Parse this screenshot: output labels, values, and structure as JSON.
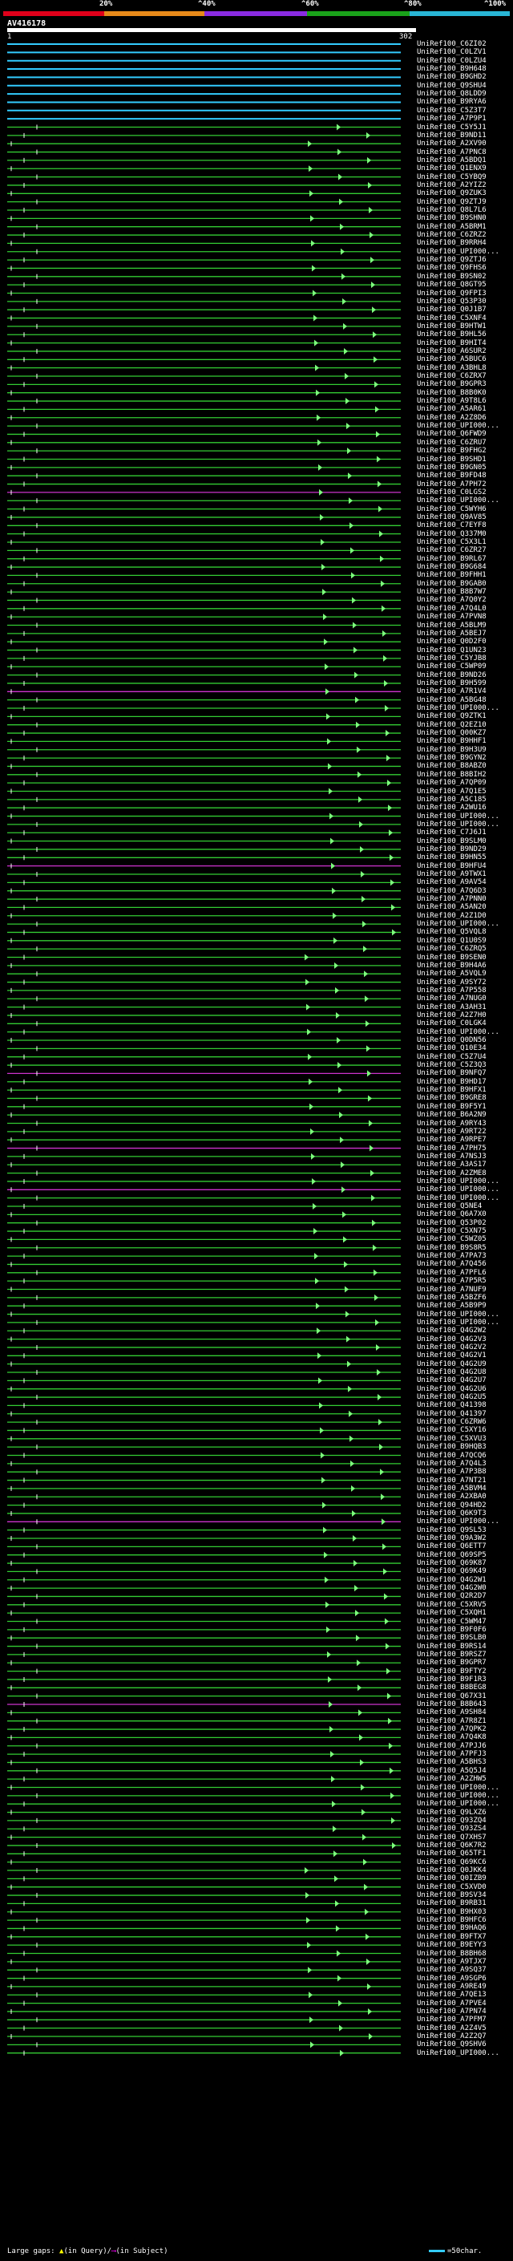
{
  "scale": {
    "ticks": [
      "20%",
      "^40%",
      "^60%",
      "^80%",
      "^100%"
    ],
    "colors": [
      "#e0001a",
      "#e88a1a",
      "#8a2be2",
      "#1aa31a",
      "#29b6d6"
    ]
  },
  "query": {
    "title": "AV416178",
    "start": "1",
    "end": "302"
  },
  "chart_data": {
    "type": "table",
    "title": "AV416178",
    "query_length": 302,
    "hits": [
      {
        "id": "UniRef100_C6ZI02",
        "color": "blue"
      },
      {
        "id": "UniRef100_C0LZV1",
        "color": "blue"
      },
      {
        "id": "UniRef100_C0LZU4",
        "color": "blue"
      },
      {
        "id": "UniRef100_B9H648",
        "color": "blue"
      },
      {
        "id": "UniRef100_B9GHD2",
        "color": "blue"
      },
      {
        "id": "UniRef100_Q9SHU4",
        "color": "blue"
      },
      {
        "id": "UniRef100_Q8LDD9",
        "color": "blue"
      },
      {
        "id": "UniRef100_B9RYA6",
        "color": "blue"
      },
      {
        "id": "UniRef100_C5Z3T7",
        "color": "blue"
      },
      {
        "id": "UniRef100_A7P9P1",
        "color": "blue"
      },
      {
        "id": "UniRef100_C5Y5J1",
        "color": "green"
      },
      {
        "id": "UniRef100_B9ND11",
        "color": "green"
      },
      {
        "id": "UniRef100_A2XV90",
        "color": "green"
      },
      {
        "id": "UniRef100_A7PNC8",
        "color": "green"
      },
      {
        "id": "UniRef100_A5BDQ1",
        "color": "green"
      },
      {
        "id": "UniRef100_Q1ENX9",
        "color": "green"
      },
      {
        "id": "UniRef100_C5YBQ9",
        "color": "green"
      },
      {
        "id": "UniRef100_A2YIZ2",
        "color": "green"
      },
      {
        "id": "UniRef100_Q9ZUK3",
        "color": "green"
      },
      {
        "id": "UniRef100_Q9ZTJ9",
        "color": "green"
      },
      {
        "id": "UniRef100_Q8L7L6",
        "color": "green"
      },
      {
        "id": "UniRef100_B9SHN0",
        "color": "green"
      },
      {
        "id": "UniRef100_A5BRM1",
        "color": "green"
      },
      {
        "id": "UniRef100_C6ZRZ2",
        "color": "green"
      },
      {
        "id": "UniRef100_B9RRH4",
        "color": "green"
      },
      {
        "id": "UniRef100_UPI000...",
        "color": "green"
      },
      {
        "id": "UniRef100_Q9ZTJ6",
        "color": "green"
      },
      {
        "id": "UniRef100_Q9FHS6",
        "color": "green"
      },
      {
        "id": "UniRef100_B9SN02",
        "color": "green"
      },
      {
        "id": "UniRef100_Q8GT95",
        "color": "green"
      },
      {
        "id": "UniRef100_Q9FPI3",
        "color": "green"
      },
      {
        "id": "UniRef100_Q53P30",
        "color": "green"
      },
      {
        "id": "UniRef100_Q0J1B7",
        "color": "green"
      },
      {
        "id": "UniRef100_C5XNF4",
        "color": "green"
      },
      {
        "id": "UniRef100_B9HTW1",
        "color": "green"
      },
      {
        "id": "UniRef100_B9HL56",
        "color": "green"
      },
      {
        "id": "UniRef100_B9HIT4",
        "color": "green"
      },
      {
        "id": "UniRef100_A6SUR2",
        "color": "green"
      },
      {
        "id": "UniRef100_A5BUC6",
        "color": "green"
      },
      {
        "id": "UniRef100_A3BHL8",
        "color": "green"
      },
      {
        "id": "UniRef100_C6ZRX7",
        "color": "green"
      },
      {
        "id": "UniRef100_B9GPR3",
        "color": "green"
      },
      {
        "id": "UniRef100_B8B0K0",
        "color": "green"
      },
      {
        "id": "UniRef100_A9T8L6",
        "color": "green"
      },
      {
        "id": "UniRef100_A5AR61",
        "color": "green"
      },
      {
        "id": "UniRef100_A2Z8D6",
        "color": "green"
      },
      {
        "id": "UniRef100_UPI000...",
        "color": "green"
      },
      {
        "id": "UniRef100_Q6FWD9",
        "color": "green"
      },
      {
        "id": "UniRef100_C6ZRU7",
        "color": "green"
      },
      {
        "id": "UniRef100_B9FHG2",
        "color": "green"
      },
      {
        "id": "UniRef100_B9SHD1",
        "color": "green"
      },
      {
        "id": "UniRef100_B9GN05",
        "color": "green"
      },
      {
        "id": "UniRef100_B9FD48",
        "color": "green"
      },
      {
        "id": "UniRef100_A7PH72",
        "color": "green"
      },
      {
        "id": "UniRef100_C0LGS2",
        "color": "magenta"
      },
      {
        "id": "UniRef100_UPI000...",
        "color": "green"
      },
      {
        "id": "UniRef100_C5WYH6",
        "color": "green"
      },
      {
        "id": "UniRef100_Q9AV85",
        "color": "green"
      },
      {
        "id": "UniRef100_C7EYF8",
        "color": "green"
      },
      {
        "id": "UniRef100_Q337M0",
        "color": "green"
      },
      {
        "id": "UniRef100_C5X3L1",
        "color": "green"
      },
      {
        "id": "UniRef100_C6ZR27",
        "color": "green"
      },
      {
        "id": "UniRef100_B9RL67",
        "color": "green"
      },
      {
        "id": "UniRef100_B9G684",
        "color": "green"
      },
      {
        "id": "UniRef100_B9FHH1",
        "color": "green"
      },
      {
        "id": "UniRef100_B9GAB0",
        "color": "green"
      },
      {
        "id": "UniRef100_B8B7W7",
        "color": "green"
      },
      {
        "id": "UniRef100_A7Q0Y2",
        "color": "green"
      },
      {
        "id": "UniRef100_A7Q4L0",
        "color": "green"
      },
      {
        "id": "UniRef100_A7PVN8",
        "color": "green"
      },
      {
        "id": "UniRef100_A5BLM9",
        "color": "green"
      },
      {
        "id": "UniRef100_A5BEJ7",
        "color": "green"
      },
      {
        "id": "UniRef100_Q0D2F0",
        "color": "green"
      },
      {
        "id": "UniRef100_Q1UN23",
        "color": "green"
      },
      {
        "id": "UniRef100_C5YJB8",
        "color": "green"
      },
      {
        "id": "UniRef100_C5WP09",
        "color": "green"
      },
      {
        "id": "UniRef100_B9ND26",
        "color": "green"
      },
      {
        "id": "UniRef100_B9H599",
        "color": "green"
      },
      {
        "id": "UniRef100_A7R1V4",
        "color": "magenta"
      },
      {
        "id": "UniRef100_A5BG48",
        "color": "green"
      },
      {
        "id": "UniRef100_UPI000...",
        "color": "green"
      },
      {
        "id": "UniRef100_Q9ZTK1",
        "color": "green"
      },
      {
        "id": "UniRef100_Q2EZ10",
        "color": "green"
      },
      {
        "id": "UniRef100_Q00KZ7",
        "color": "green"
      },
      {
        "id": "UniRef100_B9HHF1",
        "color": "green"
      },
      {
        "id": "UniRef100_B9H3U9",
        "color": "green"
      },
      {
        "id": "UniRef100_B9GYN2",
        "color": "green"
      },
      {
        "id": "UniRef100_B8ABZ0",
        "color": "green"
      },
      {
        "id": "UniRef100_B8BIH2",
        "color": "green"
      },
      {
        "id": "UniRef100_A7QP09",
        "color": "green"
      },
      {
        "id": "UniRef100_A7Q1E5",
        "color": "green"
      },
      {
        "id": "UniRef100_A5C185",
        "color": "green"
      },
      {
        "id": "UniRef100_A2WU16",
        "color": "green"
      },
      {
        "id": "UniRef100_UPI000...",
        "color": "green"
      },
      {
        "id": "UniRef100_UPI000...",
        "color": "green"
      },
      {
        "id": "UniRef100_C7J6J1",
        "color": "green"
      },
      {
        "id": "UniRef100_B9SLM0",
        "color": "green"
      },
      {
        "id": "UniRef100_B9ND29",
        "color": "green"
      },
      {
        "id": "UniRef100_B9HN55",
        "color": "green"
      },
      {
        "id": "UniRef100_B9HFU4",
        "color": "magenta"
      },
      {
        "id": "UniRef100_A9TWX1",
        "color": "green"
      },
      {
        "id": "UniRef100_A9AV54",
        "color": "green"
      },
      {
        "id": "UniRef100_A7Q6D3",
        "color": "green"
      },
      {
        "id": "UniRef100_A7PNN0",
        "color": "green"
      },
      {
        "id": "UniRef100_A5AN20",
        "color": "green"
      },
      {
        "id": "UniRef100_A2Z1D0",
        "color": "green"
      },
      {
        "id": "UniRef100_UPI000...",
        "color": "green"
      },
      {
        "id": "UniRef100_Q5VQL8",
        "color": "green"
      },
      {
        "id": "UniRef100_Q1U0S9",
        "color": "green"
      },
      {
        "id": "UniRef100_C6ZRQ5",
        "color": "green"
      },
      {
        "id": "UniRef100_B9SEN0",
        "color": "green"
      },
      {
        "id": "UniRef100_B9H4A6",
        "color": "green"
      },
      {
        "id": "UniRef100_A5VQL9",
        "color": "green"
      },
      {
        "id": "UniRef100_A9SY72",
        "color": "green"
      },
      {
        "id": "UniRef100_A7P558",
        "color": "green"
      },
      {
        "id": "UniRef100_A7NUG0",
        "color": "green"
      },
      {
        "id": "UniRef100_A3AH31",
        "color": "green"
      },
      {
        "id": "UniRef100_A2Z7H0",
        "color": "green"
      },
      {
        "id": "UniRef100_C0LGK4",
        "color": "green"
      },
      {
        "id": "UniRef100_UPI000...",
        "color": "green"
      },
      {
        "id": "UniRef100_Q0DN56",
        "color": "green"
      },
      {
        "id": "UniRef100_Q10E34",
        "color": "green"
      },
      {
        "id": "UniRef100_C5Z7U4",
        "color": "green"
      },
      {
        "id": "UniRef100_C5Z3Q3",
        "color": "green"
      },
      {
        "id": "UniRef100_B9NFQ7",
        "color": "magenta"
      },
      {
        "id": "UniRef100_B9HD17",
        "color": "green"
      },
      {
        "id": "UniRef100_B9HFX1",
        "color": "green"
      },
      {
        "id": "UniRef100_B9GRE8",
        "color": "green"
      },
      {
        "id": "UniRef100_B9F5Y1",
        "color": "green"
      },
      {
        "id": "UniRef100_B6A2N9",
        "color": "green"
      },
      {
        "id": "UniRef100_A9RY43",
        "color": "green"
      },
      {
        "id": "UniRef100_A9RT22",
        "color": "green"
      },
      {
        "id": "UniRef100_A9RPE7",
        "color": "green"
      },
      {
        "id": "UniRef100_A7PH75",
        "color": "magenta"
      },
      {
        "id": "UniRef100_A7NSJ3",
        "color": "green"
      },
      {
        "id": "UniRef100_A3AS17",
        "color": "green"
      },
      {
        "id": "UniRef100_A2ZME8",
        "color": "green"
      },
      {
        "id": "UniRef100_UPI000...",
        "color": "green"
      },
      {
        "id": "UniRef100_UPI000...",
        "color": "magenta"
      },
      {
        "id": "UniRef100_UPI000...",
        "color": "green"
      },
      {
        "id": "UniRef100_Q5NE4",
        "color": "green"
      },
      {
        "id": "UniRef100_Q6A7X0",
        "color": "green"
      },
      {
        "id": "UniRef100_Q53P02",
        "color": "green"
      },
      {
        "id": "UniRef100_C5XN75",
        "color": "green"
      },
      {
        "id": "UniRef100_C5WZ05",
        "color": "green"
      },
      {
        "id": "UniRef100_B9S8R5",
        "color": "green"
      },
      {
        "id": "UniRef100_A7PA73",
        "color": "green"
      },
      {
        "id": "UniRef100_A7Q456",
        "color": "green"
      },
      {
        "id": "UniRef100_A7PFL6",
        "color": "green"
      },
      {
        "id": "UniRef100_A7P5R5",
        "color": "green"
      },
      {
        "id": "UniRef100_A7NUF9",
        "color": "green"
      },
      {
        "id": "UniRef100_A5BZF6",
        "color": "green"
      },
      {
        "id": "UniRef100_A5B9P9",
        "color": "green"
      },
      {
        "id": "UniRef100_UPI000...",
        "color": "green"
      },
      {
        "id": "UniRef100_UPI000...",
        "color": "green"
      },
      {
        "id": "UniRef100_Q4G2W2",
        "color": "green"
      },
      {
        "id": "UniRef100_Q4G2V3",
        "color": "green"
      },
      {
        "id": "UniRef100_Q4G2V2",
        "color": "green"
      },
      {
        "id": "UniRef100_Q4G2V1",
        "color": "green"
      },
      {
        "id": "UniRef100_Q4G2U9",
        "color": "green"
      },
      {
        "id": "UniRef100_Q4G2U8",
        "color": "green"
      },
      {
        "id": "UniRef100_Q4G2U7",
        "color": "green"
      },
      {
        "id": "UniRef100_Q4G2U6",
        "color": "green"
      },
      {
        "id": "UniRef100_Q4G2U5",
        "color": "green"
      },
      {
        "id": "UniRef100_Q41398",
        "color": "green"
      },
      {
        "id": "UniRef100_Q41397",
        "color": "green"
      },
      {
        "id": "UniRef100_C6ZRW6",
        "color": "green"
      },
      {
        "id": "UniRef100_C5XY16",
        "color": "green"
      },
      {
        "id": "UniRef100_C5XVU3",
        "color": "green"
      },
      {
        "id": "UniRef100_B9HQB3",
        "color": "green"
      },
      {
        "id": "UniRef100_A7QCQ6",
        "color": "green"
      },
      {
        "id": "UniRef100_A7Q4L3",
        "color": "green"
      },
      {
        "id": "UniRef100_A7P3B8",
        "color": "green"
      },
      {
        "id": "UniRef100_A7NT21",
        "color": "green"
      },
      {
        "id": "UniRef100_A5BVM4",
        "color": "green"
      },
      {
        "id": "UniRef100_A2XBA0",
        "color": "green"
      },
      {
        "id": "UniRef100_Q94HD2",
        "color": "green"
      },
      {
        "id": "UniRef100_Q6K9T3",
        "color": "green"
      },
      {
        "id": "UniRef100_UPI000...",
        "color": "magenta"
      },
      {
        "id": "UniRef100_Q9SL53",
        "color": "green"
      },
      {
        "id": "UniRef100_Q9A3W2",
        "color": "green"
      },
      {
        "id": "UniRef100_Q6ETT7",
        "color": "green"
      },
      {
        "id": "UniRef100_Q69SP5",
        "color": "green"
      },
      {
        "id": "UniRef100_Q69K87",
        "color": "green"
      },
      {
        "id": "UniRef100_Q69K49",
        "color": "green"
      },
      {
        "id": "UniRef100_Q4G2W1",
        "color": "green"
      },
      {
        "id": "UniRef100_Q4G2W0",
        "color": "green"
      },
      {
        "id": "UniRef100_Q2R2D7",
        "color": "green"
      },
      {
        "id": "UniRef100_C5XRV5",
        "color": "green"
      },
      {
        "id": "UniRef100_C5XQH1",
        "color": "green"
      },
      {
        "id": "UniRef100_C5WM47",
        "color": "green"
      },
      {
        "id": "UniRef100_B9F0F6",
        "color": "green"
      },
      {
        "id": "UniRef100_B9SLB0",
        "color": "green"
      },
      {
        "id": "UniRef100_B9RS14",
        "color": "green"
      },
      {
        "id": "UniRef100_B9RSZ7",
        "color": "green"
      },
      {
        "id": "UniRef100_B9GPR7",
        "color": "green"
      },
      {
        "id": "UniRef100_B9FTY2",
        "color": "green"
      },
      {
        "id": "UniRef100_B9F1R3",
        "color": "green"
      },
      {
        "id": "UniRef100_B8BEG8",
        "color": "green"
      },
      {
        "id": "UniRef100_Q67X31",
        "color": "green"
      },
      {
        "id": "UniRef100_B8B643",
        "color": "magenta"
      },
      {
        "id": "UniRef100_A9SH84",
        "color": "green"
      },
      {
        "id": "UniRef100_A7R8Z1",
        "color": "green"
      },
      {
        "id": "UniRef100_A7QPK2",
        "color": "green"
      },
      {
        "id": "UniRef100_A7Q4K8",
        "color": "green"
      },
      {
        "id": "UniRef100_A7PJJ6",
        "color": "green"
      },
      {
        "id": "UniRef100_A7PFJ3",
        "color": "green"
      },
      {
        "id": "UniRef100_A5BHS3",
        "color": "green"
      },
      {
        "id": "UniRef100_A5Q5J4",
        "color": "green"
      },
      {
        "id": "UniRef100_A2ZHW5",
        "color": "green"
      },
      {
        "id": "UniRef100_UPI000...",
        "color": "green"
      },
      {
        "id": "UniRef100_UPI000...",
        "color": "green"
      },
      {
        "id": "UniRef100_UPI000...",
        "color": "green"
      },
      {
        "id": "UniRef100_Q9LXZ6",
        "color": "green"
      },
      {
        "id": "UniRef100_Q93ZQ4",
        "color": "green"
      },
      {
        "id": "UniRef100_Q93ZS4",
        "color": "green"
      },
      {
        "id": "UniRef100_Q7XHS7",
        "color": "green"
      },
      {
        "id": "UniRef100_Q6K7R2",
        "color": "green"
      },
      {
        "id": "UniRef100_Q65TF1",
        "color": "green"
      },
      {
        "id": "UniRef100_Q69KC6",
        "color": "green"
      },
      {
        "id": "UniRef100_Q0JKK4",
        "color": "green"
      },
      {
        "id": "UniRef100_Q0IZB9",
        "color": "green"
      },
      {
        "id": "UniRef100_C5XVD0",
        "color": "green"
      },
      {
        "id": "UniRef100_B9SV34",
        "color": "green"
      },
      {
        "id": "UniRef100_B9RB31",
        "color": "green"
      },
      {
        "id": "UniRef100_B9HX03",
        "color": "green"
      },
      {
        "id": "UniRef100_B9HFC6",
        "color": "green"
      },
      {
        "id": "UniRef100_B9HAQ6",
        "color": "green"
      },
      {
        "id": "UniRef100_B9FTX7",
        "color": "green"
      },
      {
        "id": "UniRef100_B9EYY3",
        "color": "green"
      },
      {
        "id": "UniRef100_B8BH68",
        "color": "green"
      },
      {
        "id": "UniRef100_A9TJX7",
        "color": "green"
      },
      {
        "id": "UniRef100_A9SQ37",
        "color": "green"
      },
      {
        "id": "UniRef100_A9SGP6",
        "color": "green"
      },
      {
        "id": "UniRef100_A9RE49",
        "color": "green"
      },
      {
        "id": "UniRef100_A7QE13",
        "color": "green"
      },
      {
        "id": "UniRef100_A7PVE4",
        "color": "green"
      },
      {
        "id": "UniRef100_A7PN74",
        "color": "green"
      },
      {
        "id": "UniRef100_A7PFM7",
        "color": "green"
      },
      {
        "id": "UniRef100_A2Z4V5",
        "color": "green"
      },
      {
        "id": "UniRef100_A2Z2Q7",
        "color": "green"
      },
      {
        "id": "UniRef100_Q9SHV6",
        "color": "green"
      },
      {
        "id": "UniRef100_UPI000...",
        "color": "green"
      }
    ]
  },
  "legend": {
    "large_gaps_label": "Large gaps:",
    "query_gap_text": "(in Query)",
    "subject_gap_text": "(in Subject)",
    "scale_text": "=50char."
  }
}
